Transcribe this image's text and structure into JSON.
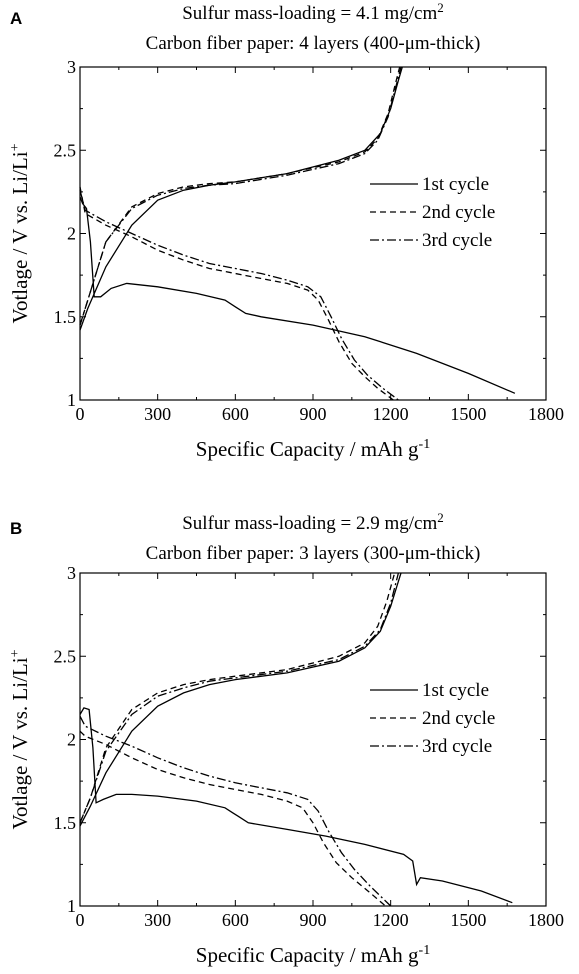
{
  "chart_data": [
    {
      "type": "line",
      "panel": "A",
      "title_parts": [
        "Sulfur mass-loading = 4.1 mg/cm",
        "2",
        ""
      ],
      "subtitle": "Carbon fiber paper: 4 layers (400-μm-thick)",
      "xlabel_parts": [
        "Specific Capacity / mAh g",
        "-1"
      ],
      "ylabel_parts": [
        "Votlage / V vs. Li/Li",
        "+"
      ],
      "xlim": [
        0,
        1800
      ],
      "ylim": [
        1,
        3
      ],
      "xticks": [
        0,
        300,
        600,
        900,
        1200,
        1500,
        1800
      ],
      "yticks": [
        1,
        1.5,
        2,
        2.5,
        3
      ],
      "ytick_labels": [
        "1",
        "1.5",
        "2",
        "2.5",
        "3"
      ],
      "legend_position": "right",
      "grid": false,
      "series": [
        {
          "name": "1st cycle",
          "dash": "solid",
          "discharge": [
            [
              0,
              2.22
            ],
            [
              10,
              2.18
            ],
            [
              25,
              2.15
            ],
            [
              40,
              1.95
            ],
            [
              55,
              1.62
            ],
            [
              80,
              1.62
            ],
            [
              120,
              1.67
            ],
            [
              180,
              1.7
            ],
            [
              300,
              1.68
            ],
            [
              450,
              1.64
            ],
            [
              560,
              1.6
            ],
            [
              600,
              1.56
            ],
            [
              640,
              1.52
            ],
            [
              700,
              1.5
            ],
            [
              900,
              1.45
            ],
            [
              1100,
              1.38
            ],
            [
              1300,
              1.28
            ],
            [
              1500,
              1.16
            ],
            [
              1680,
              1.04
            ]
          ],
          "charge": [
            [
              0,
              1.42
            ],
            [
              30,
              1.55
            ],
            [
              100,
              1.8
            ],
            [
              200,
              2.05
            ],
            [
              300,
              2.2
            ],
            [
              400,
              2.26
            ],
            [
              500,
              2.29
            ],
            [
              600,
              2.31
            ],
            [
              800,
              2.36
            ],
            [
              1000,
              2.44
            ],
            [
              1100,
              2.5
            ],
            [
              1160,
              2.6
            ],
            [
              1200,
              2.75
            ],
            [
              1230,
              2.92
            ],
            [
              1245,
              3.0
            ]
          ]
        },
        {
          "name": "2nd cycle",
          "dash": "dashed",
          "discharge": [
            [
              0,
              2.28
            ],
            [
              20,
              2.12
            ],
            [
              100,
              2.05
            ],
            [
              200,
              1.98
            ],
            [
              300,
              1.9
            ],
            [
              400,
              1.84
            ],
            [
              500,
              1.79
            ],
            [
              600,
              1.76
            ],
            [
              700,
              1.73
            ],
            [
              800,
              1.7
            ],
            [
              880,
              1.66
            ],
            [
              920,
              1.6
            ],
            [
              960,
              1.48
            ],
            [
              1000,
              1.35
            ],
            [
              1050,
              1.22
            ],
            [
              1100,
              1.14
            ],
            [
              1150,
              1.07
            ],
            [
              1210,
              1.0
            ]
          ],
          "charge": [
            [
              0,
              1.45
            ],
            [
              30,
              1.6
            ],
            [
              100,
              1.95
            ],
            [
              200,
              2.16
            ],
            [
              300,
              2.24
            ],
            [
              400,
              2.28
            ],
            [
              500,
              2.3
            ],
            [
              600,
              2.31
            ],
            [
              800,
              2.36
            ],
            [
              1000,
              2.43
            ],
            [
              1100,
              2.49
            ],
            [
              1150,
              2.57
            ],
            [
              1190,
              2.72
            ],
            [
              1215,
              2.88
            ],
            [
              1235,
              3.0
            ]
          ]
        },
        {
          "name": "3rd cycle",
          "dash": "dashdot",
          "discharge": [
            [
              0,
              2.26
            ],
            [
              20,
              2.14
            ],
            [
              100,
              2.07
            ],
            [
              200,
              2.0
            ],
            [
              300,
              1.93
            ],
            [
              400,
              1.87
            ],
            [
              500,
              1.82
            ],
            [
              600,
              1.79
            ],
            [
              700,
              1.76
            ],
            [
              800,
              1.72
            ],
            [
              880,
              1.68
            ],
            [
              930,
              1.62
            ],
            [
              970,
              1.5
            ],
            [
              1010,
              1.37
            ],
            [
              1060,
              1.24
            ],
            [
              1110,
              1.15
            ],
            [
              1170,
              1.07
            ],
            [
              1230,
              1.0
            ]
          ],
          "charge": [
            [
              0,
              1.45
            ],
            [
              30,
              1.6
            ],
            [
              100,
              1.95
            ],
            [
              200,
              2.15
            ],
            [
              300,
              2.23
            ],
            [
              400,
              2.27
            ],
            [
              500,
              2.29
            ],
            [
              600,
              2.3
            ],
            [
              800,
              2.35
            ],
            [
              1000,
              2.42
            ],
            [
              1100,
              2.48
            ],
            [
              1150,
              2.56
            ],
            [
              1190,
              2.7
            ],
            [
              1220,
              2.88
            ],
            [
              1240,
              3.0
            ]
          ]
        }
      ]
    },
    {
      "type": "line",
      "panel": "B",
      "title_parts": [
        "Sulfur mass-loading = 2.9 mg/cm",
        "2",
        ""
      ],
      "subtitle": "Carbon fiber paper: 3 layers (300-μm-thick)",
      "xlabel_parts": [
        "Specific Capacity / mAh g",
        "-1"
      ],
      "ylabel_parts": [
        "Votlage / V vs. Li/Li",
        "+"
      ],
      "xlim": [
        0,
        1800
      ],
      "ylim": [
        1,
        3
      ],
      "xticks": [
        0,
        300,
        600,
        900,
        1200,
        1500,
        1800
      ],
      "yticks": [
        1,
        1.5,
        2,
        2.5,
        3
      ],
      "ytick_labels": [
        "1",
        "1.5",
        "2",
        "2.5",
        "3"
      ],
      "legend_position": "right",
      "grid": false,
      "series": [
        {
          "name": "1st cycle",
          "dash": "solid",
          "discharge": [
            [
              0,
              2.15
            ],
            [
              15,
              2.19
            ],
            [
              35,
              2.18
            ],
            [
              50,
              1.95
            ],
            [
              62,
              1.62
            ],
            [
              90,
              1.64
            ],
            [
              140,
              1.67
            ],
            [
              200,
              1.67
            ],
            [
              300,
              1.66
            ],
            [
              450,
              1.63
            ],
            [
              560,
              1.59
            ],
            [
              590,
              1.56
            ],
            [
              610,
              1.54
            ],
            [
              650,
              1.5
            ],
            [
              800,
              1.46
            ],
            [
              950,
              1.42
            ],
            [
              1100,
              1.37
            ],
            [
              1250,
              1.31
            ],
            [
              1285,
              1.27
            ],
            [
              1300,
              1.13
            ],
            [
              1315,
              1.17
            ],
            [
              1400,
              1.15
            ],
            [
              1550,
              1.09
            ],
            [
              1670,
              1.02
            ]
          ],
          "charge": [
            [
              0,
              1.48
            ],
            [
              40,
              1.6
            ],
            [
              100,
              1.8
            ],
            [
              200,
              2.05
            ],
            [
              300,
              2.2
            ],
            [
              400,
              2.28
            ],
            [
              500,
              2.33
            ],
            [
              600,
              2.36
            ],
            [
              800,
              2.4
            ],
            [
              1000,
              2.47
            ],
            [
              1100,
              2.55
            ],
            [
              1160,
              2.65
            ],
            [
              1200,
              2.8
            ],
            [
              1230,
              2.95
            ],
            [
              1240,
              3.0
            ]
          ]
        },
        {
          "name": "2nd cycle",
          "dash": "dashed",
          "discharge": [
            [
              0,
              2.05
            ],
            [
              20,
              2.02
            ],
            [
              100,
              1.97
            ],
            [
              200,
              1.89
            ],
            [
              300,
              1.82
            ],
            [
              400,
              1.77
            ],
            [
              500,
              1.73
            ],
            [
              600,
              1.7
            ],
            [
              700,
              1.67
            ],
            [
              800,
              1.63
            ],
            [
              860,
              1.59
            ],
            [
              900,
              1.5
            ],
            [
              940,
              1.38
            ],
            [
              990,
              1.26
            ],
            [
              1050,
              1.17
            ],
            [
              1120,
              1.08
            ],
            [
              1180,
              1.0
            ]
          ],
          "charge": [
            [
              0,
              1.5
            ],
            [
              40,
              1.65
            ],
            [
              100,
              1.95
            ],
            [
              200,
              2.18
            ],
            [
              300,
              2.28
            ],
            [
              400,
              2.33
            ],
            [
              500,
              2.36
            ],
            [
              600,
              2.38
            ],
            [
              800,
              2.42
            ],
            [
              1000,
              2.5
            ],
            [
              1100,
              2.58
            ],
            [
              1150,
              2.68
            ],
            [
              1185,
              2.83
            ],
            [
              1215,
              3.0
            ]
          ]
        },
        {
          "name": "3rd cycle",
          "dash": "dashdot",
          "discharge": [
            [
              0,
              2.14
            ],
            [
              20,
              2.08
            ],
            [
              100,
              2.02
            ],
            [
              200,
              1.96
            ],
            [
              300,
              1.89
            ],
            [
              400,
              1.83
            ],
            [
              500,
              1.78
            ],
            [
              600,
              1.74
            ],
            [
              700,
              1.71
            ],
            [
              800,
              1.68
            ],
            [
              880,
              1.64
            ],
            [
              920,
              1.57
            ],
            [
              960,
              1.45
            ],
            [
              1010,
              1.32
            ],
            [
              1060,
              1.22
            ],
            [
              1120,
              1.12
            ],
            [
              1180,
              1.03
            ],
            [
              1200,
              1.0
            ]
          ],
          "charge": [
            [
              0,
              1.5
            ],
            [
              40,
              1.65
            ],
            [
              100,
              1.93
            ],
            [
              200,
              2.15
            ],
            [
              300,
              2.26
            ],
            [
              400,
              2.31
            ],
            [
              500,
              2.35
            ],
            [
              600,
              2.37
            ],
            [
              800,
              2.41
            ],
            [
              1000,
              2.48
            ],
            [
              1100,
              2.56
            ],
            [
              1160,
              2.66
            ],
            [
              1200,
              2.82
            ],
            [
              1230,
              3.0
            ]
          ]
        }
      ]
    }
  ]
}
